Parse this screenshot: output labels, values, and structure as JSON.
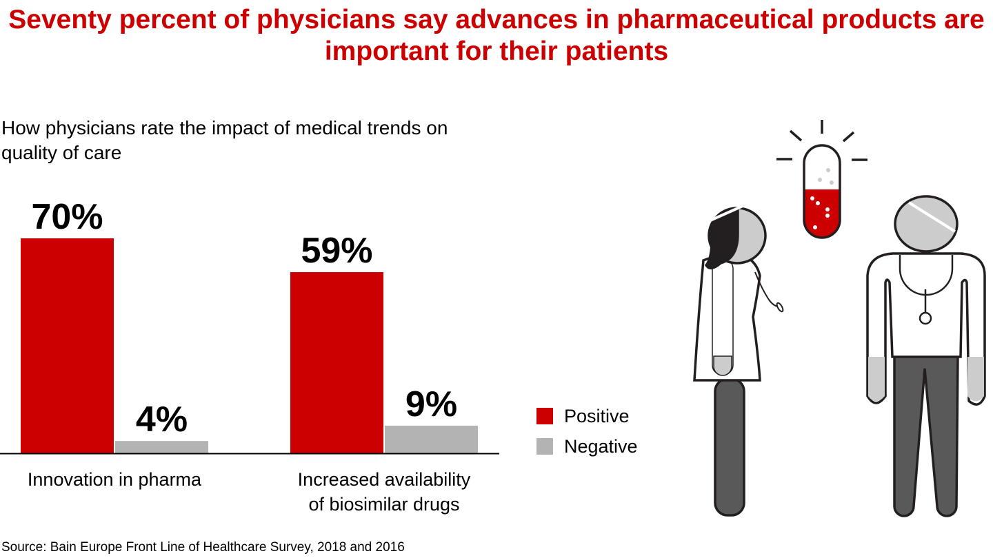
{
  "title": "Seventy percent of physicians say advances in pharmaceutical products are important for their patients",
  "source": "Source: Bain Europe Front Line of Healthcare Survey, 2018 and 2016",
  "colors": {
    "positive": "#cc0000",
    "negative": "#b3b3b3",
    "title": "#cc0000"
  },
  "chart_data": {
    "type": "bar",
    "title": "How physicians rate the impact of medical trends on quality of care",
    "categories": [
      "Innovation in pharma",
      "Increased availability of biosimilar drugs"
    ],
    "category_lines": [
      [
        "Innovation in pharma"
      ],
      [
        "Increased availability",
        "of biosimilar drugs"
      ]
    ],
    "series": [
      {
        "name": "Positive",
        "values": [
          70,
          59
        ],
        "labels": [
          "70%",
          "59%"
        ]
      },
      {
        "name": "Negative",
        "values": [
          4,
          9
        ],
        "labels": [
          "4%",
          "9%"
        ]
      }
    ],
    "ylim": [
      0,
      70
    ],
    "grid": false,
    "legend": "right",
    "xlabel": "",
    "ylabel": ""
  },
  "illustration": {
    "icons": [
      "capsule-icon",
      "female-doctor-icon",
      "male-doctor-icon"
    ]
  }
}
